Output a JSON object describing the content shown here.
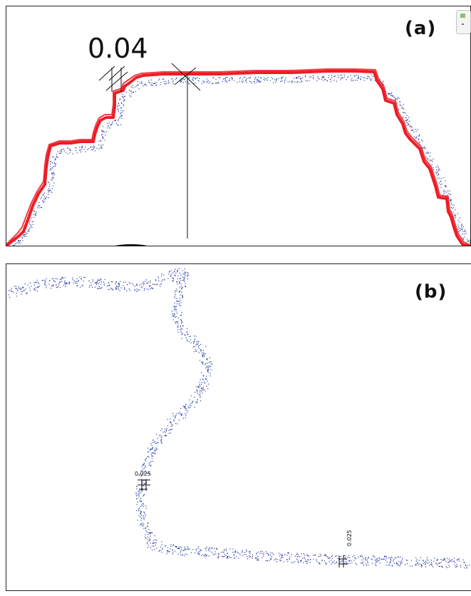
{
  "panel_a": {
    "label": "(a)",
    "dimension_value": "0.04",
    "outline_color": "#ee1c25",
    "point_color": "#2b3ea6"
  },
  "panel_b": {
    "label": "(b)",
    "dimension_left": "0.025",
    "dimension_right": "0.025",
    "point_color": "#2b3ea6"
  },
  "toolbar": {
    "icon": "layer-toggle-icon"
  }
}
